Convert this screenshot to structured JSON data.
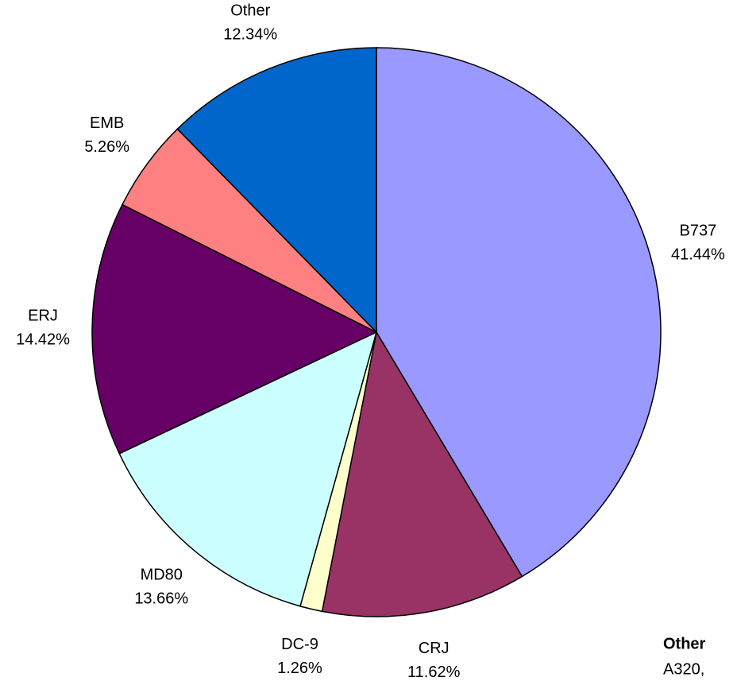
{
  "chart_data": {
    "type": "pie",
    "categories": [
      "B737",
      "CRJ",
      "DC-9",
      "MD80",
      "ERJ",
      "EMB",
      "Other"
    ],
    "values": [
      41.44,
      11.62,
      1.26,
      13.66,
      14.42,
      5.26,
      12.34
    ],
    "value_labels": [
      "41.44%",
      "11.62%",
      "1.26%",
      "13.66%",
      "14.42%",
      "5.26%",
      "12.34%"
    ],
    "colors": [
      "#9999ff",
      "#993366",
      "#ffffcc",
      "#ccffff",
      "#660066",
      "#ff8080",
      "#0066cc"
    ],
    "note_title": "Other",
    "note_text": "A320,"
  }
}
